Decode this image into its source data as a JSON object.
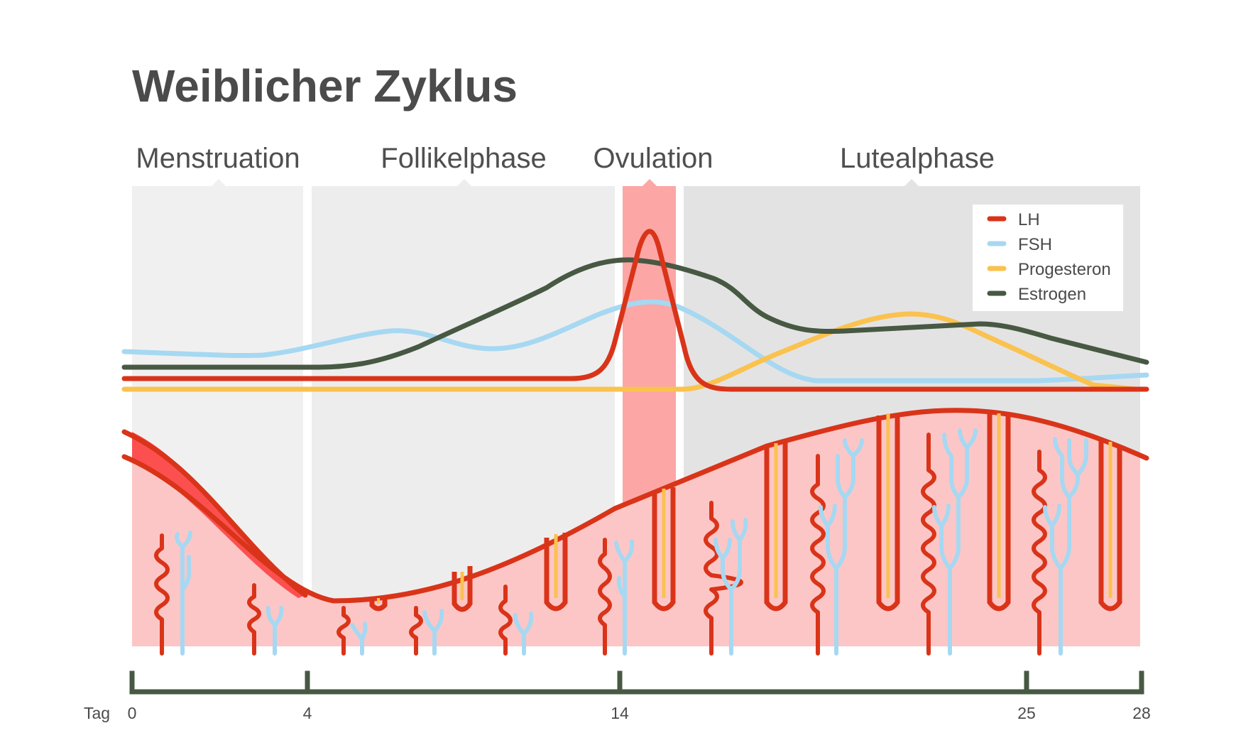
{
  "title": "Weiblicher Zyklus",
  "phases": [
    {
      "label": "Menstruation",
      "color": "#f1f0f0"
    },
    {
      "label": "Follikelphase",
      "color": "#eeeded"
    },
    {
      "label": "Ovulation",
      "color": "#fca6a6"
    },
    {
      "label": "Lutealphase",
      "color": "#e4e3e3"
    }
  ],
  "legend": [
    {
      "label": "LH",
      "color": "#d93419"
    },
    {
      "label": "FSH",
      "color": "#a6d8f2"
    },
    {
      "label": "Progesteron",
      "color": "#fac24e"
    },
    {
      "label": "Estrogen",
      "color": "#475843"
    }
  ],
  "axis": {
    "unit_label": "Tag",
    "ticks": [
      "0",
      "4",
      "14",
      "25",
      "28"
    ],
    "color": "#475843"
  },
  "tissue": {
    "fill": "#fdc6c6",
    "line": "#d93419",
    "menstrual_blood": "#fc5050",
    "vessel": "#a6d8f2",
    "gland_secretion": "#fac24e"
  }
}
